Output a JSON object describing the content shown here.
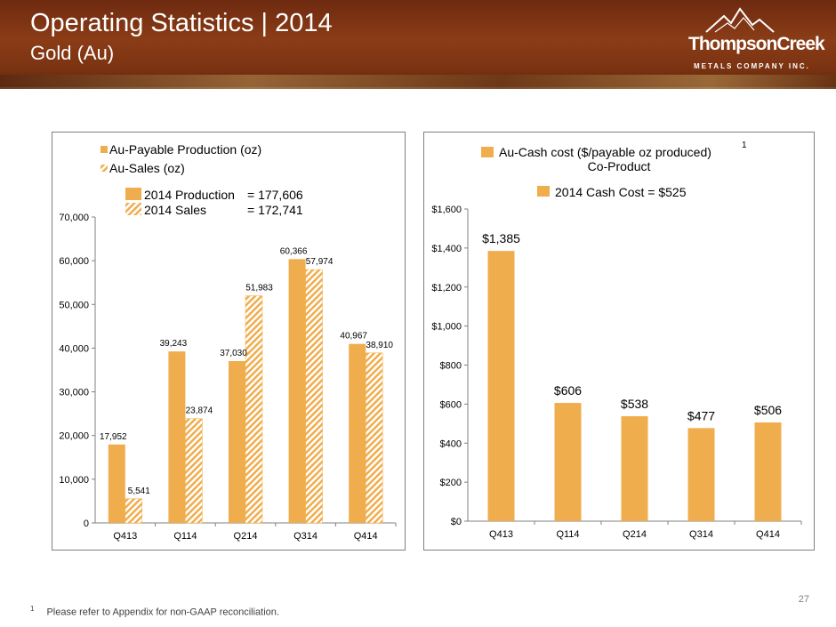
{
  "header": {
    "title": "Operating Statistics | 2014",
    "subtitle": "Gold (Au)",
    "logo_name": "ThompsonCreek",
    "logo_sub": "METALS COMPANY INC."
  },
  "colors": {
    "bar": "#F0AD4E",
    "bar_stroke": "#F5B041",
    "axis": "#808080"
  },
  "chart_data": [
    {
      "type": "bar",
      "categories": [
        "Q413",
        "Q114",
        "Q214",
        "Q314",
        "Q414"
      ],
      "series": [
        {
          "name": "Au-Payable Production (oz)",
          "style": "solid",
          "values": [
            17952,
            39243,
            37030,
            60366,
            40967
          ],
          "labels": [
            "17,952",
            "39,243",
            "37,030",
            "60,366",
            "40,967"
          ]
        },
        {
          "name": "Au-Sales (oz)",
          "style": "hatched",
          "values": [
            5541,
            23874,
            51983,
            57974,
            38910
          ],
          "labels": [
            "5,541",
            "23,874",
            "51,983",
            "57,974",
            "38,910"
          ]
        }
      ],
      "ylim": [
        0,
        70000
      ],
      "ticks": [
        0,
        10000,
        20000,
        30000,
        40000,
        50000,
        60000,
        70000
      ],
      "tick_labels": [
        "0",
        "10,000",
        "20,000",
        "30,000",
        "40,000",
        "50,000",
        "60,000",
        "70,000"
      ],
      "annotations": {
        "production_label": "2014 Production",
        "production_value": "= 177,606",
        "sales_label": "2014 Sales",
        "sales_value": "= 172,741"
      }
    },
    {
      "type": "bar",
      "categories": [
        "Q413",
        "Q114",
        "Q214",
        "Q314",
        "Q414"
      ],
      "series": [
        {
          "name": "Au-Cash cost ($/payable oz produced)",
          "values": [
            1385,
            606,
            538,
            477,
            506
          ],
          "labels": [
            "$1,385",
            "$606",
            "$538",
            "$477",
            "$506"
          ]
        }
      ],
      "legend_superscript": "1",
      "legend_line2": "Co-Product",
      "ylim": [
        0,
        1600
      ],
      "ticks": [
        0,
        200,
        400,
        600,
        800,
        1000,
        1200,
        1400,
        1600
      ],
      "tick_labels": [
        "$0",
        "$200",
        "$400",
        "$600",
        "$800",
        "$1,000",
        "$1,200",
        "$1,400",
        "$1,600"
      ],
      "annotations": {
        "cash_cost_label": "2014 Cash Cost = $525"
      }
    }
  ],
  "footer": {
    "page_number": "27",
    "footnote_mark": "1",
    "footnote_text": "Please refer to Appendix for non-GAAP reconciliation."
  }
}
